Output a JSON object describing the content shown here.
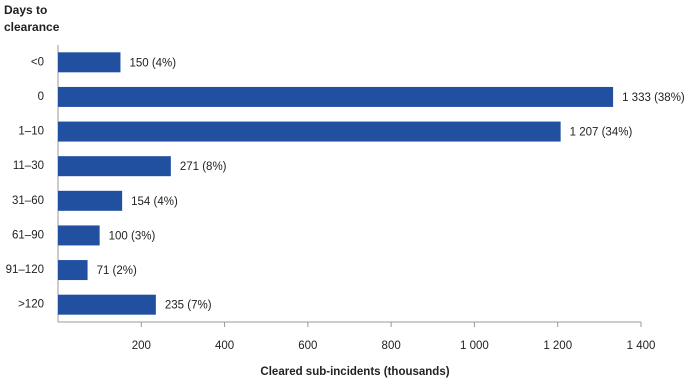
{
  "chart_data": {
    "type": "hbar",
    "y_label": "Days to clearance",
    "x_label": "Cleared sub-incidents (thousands)",
    "categories": [
      "<0",
      "0",
      "1–10",
      "11–30",
      "31–60",
      "61–90",
      "91–120",
      ">120"
    ],
    "values": [
      150,
      1333,
      1207,
      271,
      154,
      100,
      71,
      235
    ],
    "value_labels": [
      "150 (4%)",
      "1 333 (38%)",
      "1 207 (34%)",
      "271 (8%)",
      "154 (4%)",
      "100 (3%)",
      "71 (2%)",
      "235 (7%)"
    ],
    "color": "#2150a0",
    "xlim": [
      0,
      1400
    ],
    "xticks": [
      200,
      400,
      600,
      800,
      {
        "value": 1000,
        "label": "1 000"
      },
      {
        "value": 1200,
        "label": "1 200"
      },
      {
        "value": 1400,
        "label": "1 400"
      }
    ]
  }
}
